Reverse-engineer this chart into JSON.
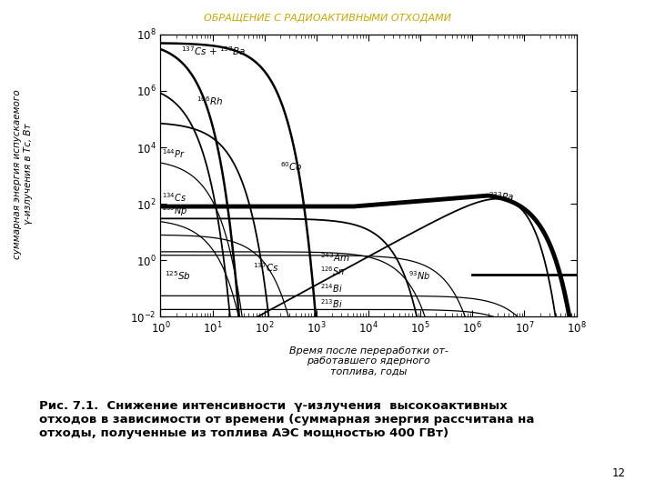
{
  "title_top": "ОБРАЩЕНИЕ С РАДИОАКТИВНЫМИ ОТХОДАМИ",
  "xlabel_line1": "Время после переработки от-",
  "xlabel_line2": "работавшего ядерного",
  "xlabel_line3": "топлива, годы",
  "ylabel_line1": "суммарная энергия испускаемого",
  "ylabel_line2": "γ-излучения в Тс, Вт",
  "caption_line1": "Рис. 7.1.  Снижение интенсивности  γ-излучения  высокоактивных",
  "caption_line2": "отходов в зависимости от времени (суммарная энергия рассчитана на",
  "caption_line3": "отходы, полученные из топлива АЭС мощностью 400 ГВт)",
  "page_number": "12",
  "xlim": [
    1.0,
    100000000.0
  ],
  "ylim": [
    0.01,
    100000000.0
  ],
  "bg_color": "#ffffff"
}
